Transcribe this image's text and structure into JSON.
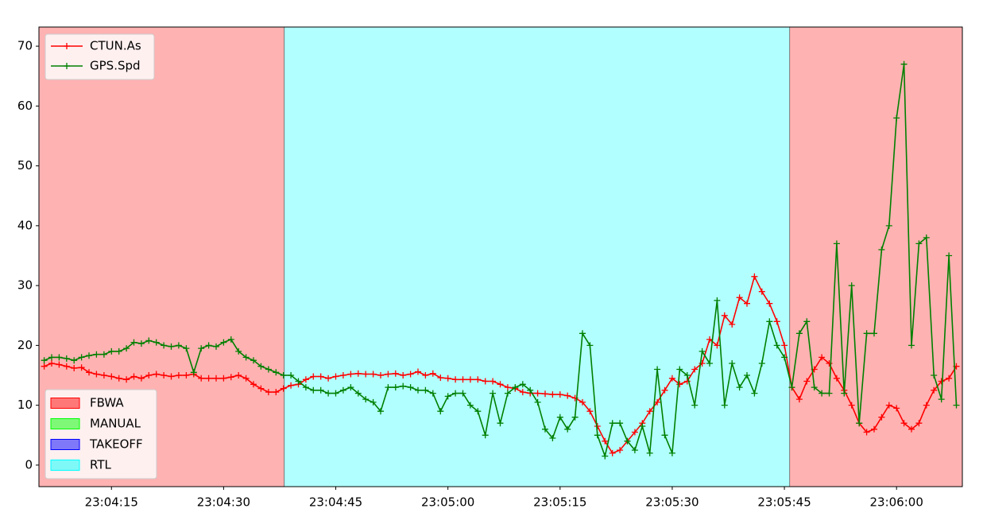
{
  "chart_data": {
    "type": "line",
    "x": [
      83046,
      83047,
      83048,
      83049,
      83050,
      83051,
      83052,
      83053,
      83054,
      83055,
      83056,
      83057,
      83058,
      83059,
      83060,
      83061,
      83062,
      83063,
      83064,
      83065,
      83066,
      83067,
      83068,
      83069,
      83070,
      83071,
      83072,
      83073,
      83074,
      83075,
      83076,
      83077,
      83078,
      83079,
      83080,
      83081,
      83082,
      83083,
      83084,
      83085,
      83086,
      83087,
      83088,
      83089,
      83090,
      83091,
      83092,
      83093,
      83094,
      83095,
      83096,
      83097,
      83098,
      83099,
      83100,
      83101,
      83102,
      83103,
      83104,
      83105,
      83106,
      83107,
      83108,
      83109,
      83110,
      83111,
      83112,
      83113,
      83114,
      83115,
      83116,
      83117,
      83118,
      83119,
      83120,
      83121,
      83122,
      83123,
      83124,
      83125,
      83126,
      83127,
      83128,
      83129,
      83130,
      83131,
      83132,
      83133,
      83134,
      83135,
      83136,
      83137,
      83138,
      83139,
      83140,
      83141,
      83142,
      83143,
      83144,
      83145,
      83146,
      83147,
      83148,
      83149,
      83150,
      83151,
      83152,
      83153,
      83154,
      83155,
      83156,
      83157,
      83158,
      83159,
      83160,
      83161,
      83162,
      83163,
      83164,
      83165,
      83166,
      83167,
      83168
    ],
    "series": [
      {
        "name": "CTUN.As",
        "color": "#ff0000",
        "values": [
          16.5,
          17,
          16.8,
          16.5,
          16.2,
          16.3,
          15.5,
          15.2,
          15,
          14.8,
          14.5,
          14.3,
          14.8,
          14.5,
          15,
          15.2,
          15,
          14.8,
          15,
          15,
          15.2,
          14.5,
          14.5,
          14.5,
          14.5,
          14.7,
          15,
          14.5,
          13.5,
          12.8,
          12.2,
          12.2,
          12.8,
          13.3,
          13.5,
          14.3,
          14.8,
          14.8,
          14.5,
          14.8,
          15,
          15.2,
          15.3,
          15.2,
          15.2,
          15,
          15.2,
          15.3,
          15,
          15.2,
          15.6,
          15,
          15.3,
          14.6,
          14.5,
          14.3,
          14.3,
          14.3,
          14.3,
          14,
          14,
          13.5,
          13,
          12.8,
          12.2,
          12,
          12,
          11.9,
          11.8,
          11.8,
          11.6,
          11.2,
          10.5,
          9,
          6.5,
          4,
          2,
          2.5,
          4,
          5.5,
          7,
          9,
          10.5,
          12.5,
          14.5,
          13.5,
          14,
          16,
          17,
          21,
          20,
          25,
          23.5,
          28,
          27,
          31.5,
          29,
          27,
          24,
          20,
          13,
          11,
          14,
          16,
          18,
          17,
          14.5,
          12.5,
          10,
          7,
          5.5,
          6,
          8,
          10,
          9.5,
          7,
          6,
          7,
          10,
          12.5,
          14,
          14.5,
          16.5
        ]
      },
      {
        "name": "GPS.Spd",
        "color": "#008000",
        "values": [
          17.5,
          18,
          18,
          17.8,
          17.5,
          18,
          18.3,
          18.5,
          18.5,
          19,
          19,
          19.5,
          20.5,
          20.3,
          20.8,
          20.5,
          20,
          19.8,
          20,
          19.5,
          15.5,
          19.5,
          20,
          19.8,
          20.5,
          21,
          19,
          18,
          17.5,
          16.5,
          16,
          15.5,
          15,
          15,
          14,
          13,
          12.5,
          12.5,
          12,
          12,
          12.5,
          13,
          12,
          11,
          10.5,
          9,
          13,
          13,
          13.2,
          13,
          12.5,
          12.5,
          12,
          9,
          11.5,
          12,
          12,
          10,
          9,
          5,
          12,
          7,
          12,
          13,
          13.5,
          12.5,
          10.5,
          6,
          4.5,
          8,
          6,
          8,
          22,
          20,
          5,
          1.5,
          7,
          7,
          4,
          2.5,
          6.5,
          2,
          16,
          5,
          2,
          16,
          15,
          10,
          19,
          17,
          27.5,
          10,
          17,
          13,
          15,
          12,
          17,
          24,
          20,
          18,
          13,
          22,
          24,
          13,
          12,
          12,
          37,
          12,
          30,
          7,
          22,
          22,
          36,
          40,
          58,
          67,
          20,
          37,
          38,
          15,
          11,
          35,
          10
        ]
      }
    ],
    "xlim": [
      83045.3,
      83168.8
    ],
    "ylim": [
      -3.6,
      73.2
    ],
    "yticks": [
      0,
      10,
      20,
      30,
      40,
      50,
      60,
      70
    ],
    "xticks": [
      {
        "value": 83055,
        "label": "23:04:15"
      },
      {
        "value": 83070,
        "label": "23:04:30"
      },
      {
        "value": 83085,
        "label": "23:04:45"
      },
      {
        "value": 83100,
        "label": "23:05:00"
      },
      {
        "value": 83115,
        "label": "23:05:15"
      },
      {
        "value": 83130,
        "label": "23:05:30"
      },
      {
        "value": 83145,
        "label": "23:05:45"
      },
      {
        "value": 83160,
        "label": "23:06:00"
      }
    ],
    "legend": "upper left",
    "modes": [
      {
        "name": "FBWA",
        "color": "#ff0000"
      },
      {
        "name": "MANUAL",
        "color": "#00ff00"
      },
      {
        "name": "TAKEOFF",
        "color": "#0000ff"
      },
      {
        "name": "RTL",
        "color": "#00ffff"
      }
    ],
    "mode_legend": "lower left",
    "mode_spans": [
      {
        "mode": "FBWA",
        "start": 83045.3,
        "end": 83078.1
      },
      {
        "mode": "RTL",
        "start": 83078.1,
        "end": 83145.7
      },
      {
        "mode": "FBWA",
        "start": 83145.7,
        "end": 83168.8
      }
    ]
  }
}
